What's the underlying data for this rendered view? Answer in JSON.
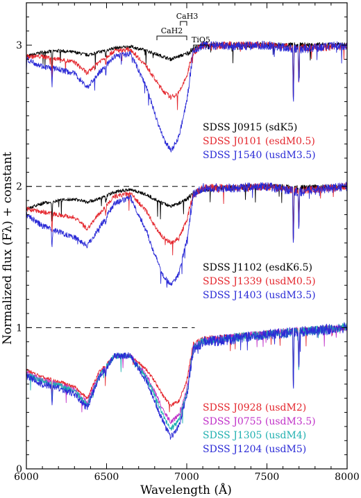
{
  "chart_data": {
    "type": "line",
    "title": "",
    "xlabel": "Wavelength (Å)",
    "ylabel": "Normalized flux (Fλ) + constant",
    "xlim": [
      6000,
      8000
    ],
    "ylim": [
      0,
      3.3
    ],
    "xticks": [
      6000,
      6500,
      7000,
      7500,
      8000
    ],
    "yticks": [
      0,
      1,
      2,
      3
    ],
    "grid": false,
    "reference_lines": [
      {
        "y": 2,
        "x_from": 6000,
        "x_to": 7050,
        "style": "dashed"
      },
      {
        "y": 1,
        "x_from": 6000,
        "x_to": 7050,
        "style": "dashed"
      }
    ],
    "band_annotations": [
      {
        "label": "CaH2",
        "x_from": 6814,
        "x_to": 7000
      },
      {
        "label": "CaH3",
        "x_from": 6960,
        "x_to": 7000
      },
      {
        "label": "TiO5",
        "x_from": 7042,
        "x_to": 7135
      }
    ],
    "groups": [
      {
        "offset": 2,
        "series": [
          {
            "name": "SDSS J0915 (sdK5)",
            "color": "#000000",
            "x": [
              6000,
              6100,
              6200,
              6300,
              6380,
              6450,
              6550,
              6650,
              6750,
              6850,
              6900,
              6950,
              7000,
              7040,
              7100,
              7300,
              7500,
              7700,
              8000
            ],
            "y": [
              0.92,
              0.95,
              0.96,
              0.95,
              0.93,
              0.95,
              0.98,
              0.99,
              0.96,
              0.92,
              0.9,
              0.92,
              0.94,
              0.97,
              1.0,
              1.0,
              1.0,
              1.0,
              1.0
            ]
          },
          {
            "name": "SDSS J0101 (esdM0.5)",
            "color": "#e4262d",
            "x": [
              6000,
              6100,
              6200,
              6300,
              6380,
              6450,
              6550,
              6650,
              6750,
              6800,
              6850,
              6900,
              6950,
              7000,
              7040,
              7100,
              7300,
              7500,
              7700,
              8000
            ],
            "y": [
              0.92,
              0.92,
              0.9,
              0.88,
              0.8,
              0.88,
              0.96,
              0.97,
              0.85,
              0.76,
              0.68,
              0.63,
              0.66,
              0.78,
              0.95,
              1.0,
              1.0,
              1.0,
              0.98,
              0.99
            ]
          },
          {
            "name": "SDSS J1540 (usdM3.5)",
            "color": "#2a2ad6",
            "x": [
              6000,
              6100,
              6200,
              6300,
              6380,
              6450,
              6550,
              6650,
              6750,
              6800,
              6850,
              6900,
              6950,
              7000,
              7040,
              7100,
              7300,
              7500,
              7700,
              8000
            ],
            "y": [
              0.9,
              0.85,
              0.83,
              0.8,
              0.7,
              0.8,
              0.92,
              0.94,
              0.7,
              0.52,
              0.35,
              0.25,
              0.35,
              0.6,
              0.95,
              1.0,
              0.99,
              1.0,
              0.97,
              1.0
            ]
          }
        ]
      },
      {
        "offset": 1,
        "series": [
          {
            "name": "SDSS J1102 (esdK6.5)",
            "color": "#000000",
            "x": [
              6000,
              6100,
              6200,
              6300,
              6380,
              6450,
              6550,
              6650,
              6750,
              6850,
              6900,
              6950,
              7000,
              7040,
              7100,
              7300,
              7500,
              7700,
              8000
            ],
            "y": [
              0.84,
              0.88,
              0.9,
              0.91,
              0.89,
              0.91,
              0.96,
              0.98,
              0.94,
              0.88,
              0.86,
              0.88,
              0.91,
              0.95,
              0.98,
              0.99,
              1.0,
              0.99,
              1.0
            ]
          },
          {
            "name": "SDSS J1339 (usdM0.5)",
            "color": "#e4262d",
            "x": [
              6000,
              6100,
              6200,
              6300,
              6380,
              6450,
              6550,
              6650,
              6750,
              6800,
              6850,
              6900,
              6950,
              7000,
              7040,
              7100,
              7300,
              7500,
              7700,
              8000
            ],
            "y": [
              0.84,
              0.82,
              0.8,
              0.78,
              0.7,
              0.8,
              0.93,
              0.95,
              0.82,
              0.72,
              0.64,
              0.6,
              0.63,
              0.76,
              0.94,
              0.99,
              0.99,
              1.0,
              0.97,
              1.0
            ]
          },
          {
            "name": "SDSS J1403 (usdM3.5)",
            "color": "#2a2ad6",
            "x": [
              6000,
              6100,
              6200,
              6300,
              6380,
              6450,
              6550,
              6650,
              6750,
              6800,
              6850,
              6900,
              6950,
              7000,
              7040,
              7100,
              7300,
              7500,
              7700,
              8000
            ],
            "y": [
              0.8,
              0.72,
              0.68,
              0.64,
              0.58,
              0.7,
              0.88,
              0.92,
              0.68,
              0.52,
              0.38,
              0.3,
              0.38,
              0.62,
              0.94,
              0.99,
              0.99,
              1.0,
              0.96,
              1.0
            ]
          }
        ]
      },
      {
        "offset": 0,
        "series": [
          {
            "name": "SDSS J0928 (usdM2)",
            "color": "#e4262d",
            "x": [
              6000,
              6100,
              6200,
              6300,
              6380,
              6450,
              6550,
              6650,
              6750,
              6800,
              6850,
              6900,
              6950,
              7000,
              7040,
              7100,
              7300,
              7500,
              7700,
              8000
            ],
            "y": [
              0.7,
              0.65,
              0.62,
              0.58,
              0.5,
              0.68,
              0.8,
              0.8,
              0.7,
              0.62,
              0.52,
              0.45,
              0.48,
              0.62,
              0.88,
              0.92,
              0.94,
              0.96,
              0.98,
              1.0
            ]
          },
          {
            "name": "SDSS J0755 (usdM3.5)",
            "color": "#c030c8",
            "x": [
              6000,
              6100,
              6200,
              6300,
              6380,
              6450,
              6550,
              6650,
              6750,
              6800,
              6850,
              6900,
              6950,
              7000,
              7040,
              7100,
              7300,
              7500,
              7700,
              8000
            ],
            "y": [
              0.68,
              0.63,
              0.6,
              0.56,
              0.47,
              0.66,
              0.8,
              0.8,
              0.66,
              0.55,
              0.42,
              0.33,
              0.38,
              0.56,
              0.86,
              0.91,
              0.93,
              0.96,
              0.98,
              1.0
            ]
          },
          {
            "name": "SDSS J1305 (usdM4)",
            "color": "#20b0b0",
            "x": [
              6000,
              6100,
              6200,
              6300,
              6380,
              6450,
              6550,
              6650,
              6750,
              6800,
              6850,
              6900,
              6950,
              7000,
              7040,
              7100,
              7300,
              7500,
              7700,
              8000
            ],
            "y": [
              0.67,
              0.62,
              0.59,
              0.55,
              0.45,
              0.65,
              0.8,
              0.8,
              0.64,
              0.52,
              0.38,
              0.28,
              0.34,
              0.54,
              0.85,
              0.9,
              0.93,
              0.95,
              0.97,
              1.0
            ]
          },
          {
            "name": "SDSS J1204 (usdM5)",
            "color": "#2a2ad6",
            "x": [
              6000,
              6100,
              6200,
              6300,
              6380,
              6450,
              6550,
              6650,
              6750,
              6800,
              6850,
              6900,
              6950,
              7000,
              7040,
              7100,
              7300,
              7500,
              7700,
              8000
            ],
            "y": [
              0.66,
              0.6,
              0.57,
              0.53,
              0.43,
              0.64,
              0.8,
              0.8,
              0.62,
              0.48,
              0.34,
              0.22,
              0.3,
              0.52,
              0.84,
              0.9,
              0.92,
              0.95,
              0.97,
              1.0
            ]
          }
        ]
      }
    ],
    "legend_blocks": [
      {
        "placement": "upper-right",
        "entries": [
          {
            "text": "SDSS J0915 (sdK5)",
            "color": "#000000"
          },
          {
            "text": "SDSS J0101 (esdM0.5)",
            "color": "#e4262d"
          },
          {
            "text": "SDSS J1540 (usdM3.5)",
            "color": "#2a2ad6"
          }
        ]
      },
      {
        "placement": "middle-right",
        "entries": [
          {
            "text": "SDSS J1102 (esdK6.5)",
            "color": "#000000"
          },
          {
            "text": "SDSS J1339 (usdM0.5)",
            "color": "#e4262d"
          },
          {
            "text": "SDSS J1403 (usdM3.5)",
            "color": "#2a2ad6"
          }
        ]
      },
      {
        "placement": "lower-right",
        "entries": [
          {
            "text": "SDSS J0928 (usdM2)",
            "color": "#e4262d"
          },
          {
            "text": "SDSS J0755 (usdM3.5)",
            "color": "#c030c8"
          },
          {
            "text": "SDSS J1305 (usdM4)",
            "color": "#20b0b0"
          },
          {
            "text": "SDSS J1204 (usdM5)",
            "color": "#2a2ad6"
          }
        ]
      }
    ],
    "absorption_lines": [
      {
        "x": 6160,
        "depth": 0.14
      },
      {
        "x": 6495,
        "depth": 0.06
      },
      {
        "x": 7665,
        "depth": 0.45
      },
      {
        "x": 7699,
        "depth": 0.3
      }
    ]
  }
}
